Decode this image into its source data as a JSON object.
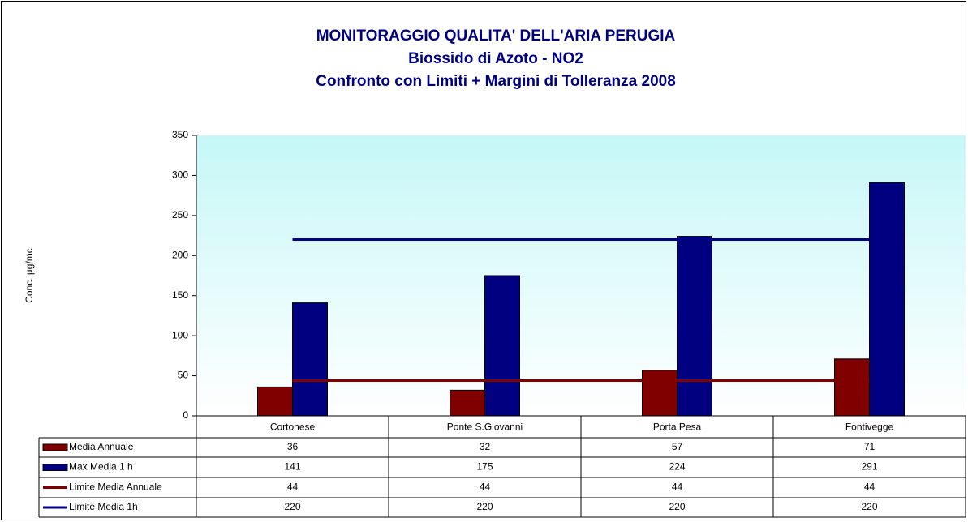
{
  "chart_data": {
    "type": "bar",
    "title": [
      "MONITORAGGIO QUALITA' DELL'ARIA  PERUGIA",
      "Biossido di Azoto - NO2",
      "Confronto con Limiti + Margini di Tolleranza 2008"
    ],
    "y_label": "Conc. µg/mc",
    "categories": [
      "Cortonese",
      "Ponte S.Giovanni",
      "Porta Pesa",
      "Fontivegge"
    ],
    "series": [
      {
        "name": "Media Annuale",
        "type": "bar",
        "color": "#800000",
        "values": [
          36,
          32,
          57,
          71
        ]
      },
      {
        "name": "Max Media 1 h",
        "type": "bar",
        "color": "#000080",
        "values": [
          141,
          175,
          224,
          291
        ]
      },
      {
        "name": "Limite Media Annuale",
        "type": "line",
        "color": "#800000",
        "values": [
          44,
          44,
          44,
          44
        ]
      },
      {
        "name": "Limite Media 1h",
        "type": "line",
        "color": "#000080",
        "values": [
          220,
          220,
          220,
          220
        ]
      }
    ],
    "ylim": [
      0,
      350
    ],
    "yticks": [
      0,
      50,
      100,
      150,
      200,
      250,
      300,
      350
    ],
    "grid": false,
    "data_table": true
  }
}
